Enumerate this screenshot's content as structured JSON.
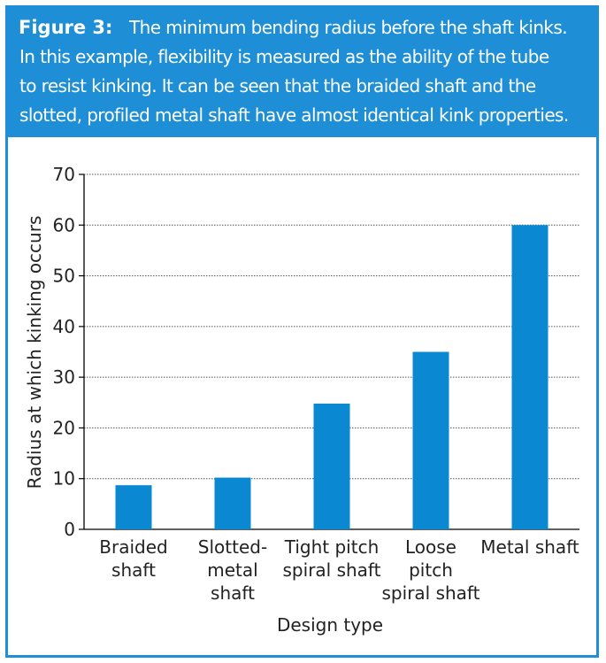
{
  "caption": {
    "label": "Figure 3:",
    "text_line1": "The minimum bending radius before the shaft kinks.",
    "text_line2": "In this example, flexibility is measured as the ability of the tube",
    "text_line3": "to resist kinking. It can be seen that the braided shaft and the",
    "text_line4": "slotted, profiled metal shaft have almost identical kink properties."
  },
  "colors": {
    "accent": "#1e8fd6",
    "bar": "#0a89d2"
  },
  "chart_data": {
    "type": "bar",
    "categories": [
      [
        "Braided",
        "shaft"
      ],
      [
        "Slotted-",
        "metal",
        "shaft"
      ],
      [
        "Tight pitch",
        "spiral shaft"
      ],
      [
        "Loose",
        "pitch",
        "spiral shaft"
      ],
      [
        "Metal shaft"
      ]
    ],
    "values": [
      8.7,
      10.2,
      24.8,
      35,
      60
    ],
    "xlabel": "Design type",
    "ylabel": "Radius at which kinking occurs",
    "ylim": [
      0,
      70
    ],
    "yticks": [
      0,
      10,
      20,
      30,
      40,
      50,
      60,
      70
    ],
    "grid": true
  }
}
